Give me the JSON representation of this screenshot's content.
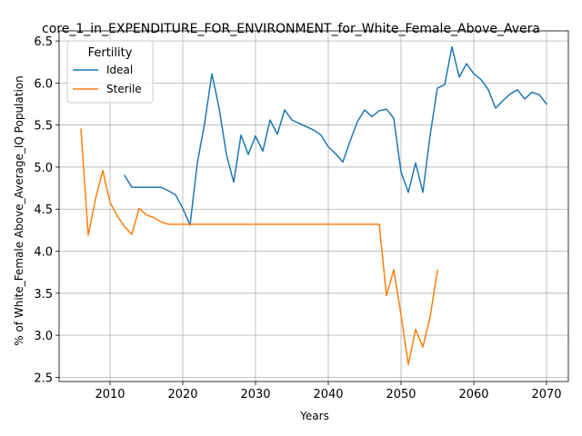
{
  "chart_data": {
    "type": "line",
    "title": "core_1_in_EXPENDITURE_FOR_ENVIRONMENT_for_White_Female_Above_Avera",
    "xlabel": "Years",
    "ylabel": "% of White_Female Above_Average_IQ Population",
    "xlim": [
      2003,
      2073
    ],
    "ylim": [
      2.45,
      6.62
    ],
    "xticks": [
      2010,
      2020,
      2030,
      2040,
      2050,
      2060,
      2070
    ],
    "yticks": [
      2.5,
      3.0,
      3.5,
      4.0,
      4.5,
      5.0,
      5.5,
      6.0,
      6.5
    ],
    "grid": true,
    "legend": {
      "title": "Fertility",
      "placement": "upper left"
    },
    "series": [
      {
        "name": "Ideal",
        "color": "#1f77b4",
        "x": [
          2012,
          2013,
          2014,
          2015,
          2016,
          2017,
          2018,
          2019,
          2020,
          2021,
          2022,
          2023,
          2024,
          2025,
          2026,
          2027,
          2028,
          2029,
          2030,
          2031,
          2032,
          2033,
          2034,
          2035,
          2036,
          2037,
          2038,
          2039,
          2040,
          2041,
          2042,
          2043,
          2044,
          2045,
          2046,
          2047,
          2048,
          2049,
          2050,
          2051,
          2052,
          2053,
          2054,
          2055,
          2056,
          2057,
          2058,
          2059,
          2060,
          2061,
          2062,
          2063,
          2064,
          2065,
          2066,
          2067,
          2068,
          2069,
          2070
        ],
        "values": [
          4.9,
          4.76,
          4.76,
          4.76,
          4.76,
          4.76,
          4.72,
          4.67,
          4.51,
          4.31,
          5.05,
          5.52,
          6.11,
          5.7,
          5.15,
          4.82,
          5.38,
          5.15,
          5.37,
          5.19,
          5.56,
          5.39,
          5.68,
          5.56,
          5.52,
          5.48,
          5.44,
          5.38,
          5.24,
          5.16,
          5.06,
          5.31,
          5.54,
          5.68,
          5.6,
          5.67,
          5.69,
          5.58,
          4.94,
          4.7,
          5.05,
          4.7,
          5.38,
          5.94,
          5.98,
          6.43,
          6.07,
          6.23,
          6.11,
          6.04,
          5.92,
          5.7,
          5.79,
          5.87,
          5.92,
          5.81,
          5.89,
          5.86,
          5.75
        ]
      },
      {
        "name": "Sterile",
        "color": "#ff7f0e",
        "x": [
          2006,
          2007,
          2008,
          2009,
          2010,
          2011,
          2012,
          2013,
          2014,
          2015,
          2016,
          2017,
          2018,
          2019,
          2020,
          2021,
          2022,
          2023,
          2024,
          2025,
          2026,
          2027,
          2028,
          2029,
          2030,
          2031,
          2032,
          2033,
          2034,
          2035,
          2036,
          2037,
          2038,
          2039,
          2040,
          2041,
          2042,
          2043,
          2044,
          2045,
          2046,
          2047,
          2048,
          2049,
          2050,
          2051,
          2052,
          2053,
          2054,
          2055
        ],
        "values": [
          5.45,
          4.19,
          4.62,
          4.96,
          4.58,
          4.42,
          4.29,
          4.2,
          4.51,
          4.43,
          4.4,
          4.35,
          4.32,
          4.32,
          4.32,
          4.32,
          4.32,
          4.32,
          4.32,
          4.32,
          4.32,
          4.32,
          4.32,
          4.32,
          4.32,
          4.32,
          4.32,
          4.32,
          4.32,
          4.32,
          4.32,
          4.32,
          4.32,
          4.32,
          4.32,
          4.32,
          4.32,
          4.32,
          4.32,
          4.32,
          4.32,
          4.32,
          3.47,
          3.78,
          3.24,
          2.65,
          3.07,
          2.86,
          3.22,
          3.77
        ]
      }
    ]
  }
}
